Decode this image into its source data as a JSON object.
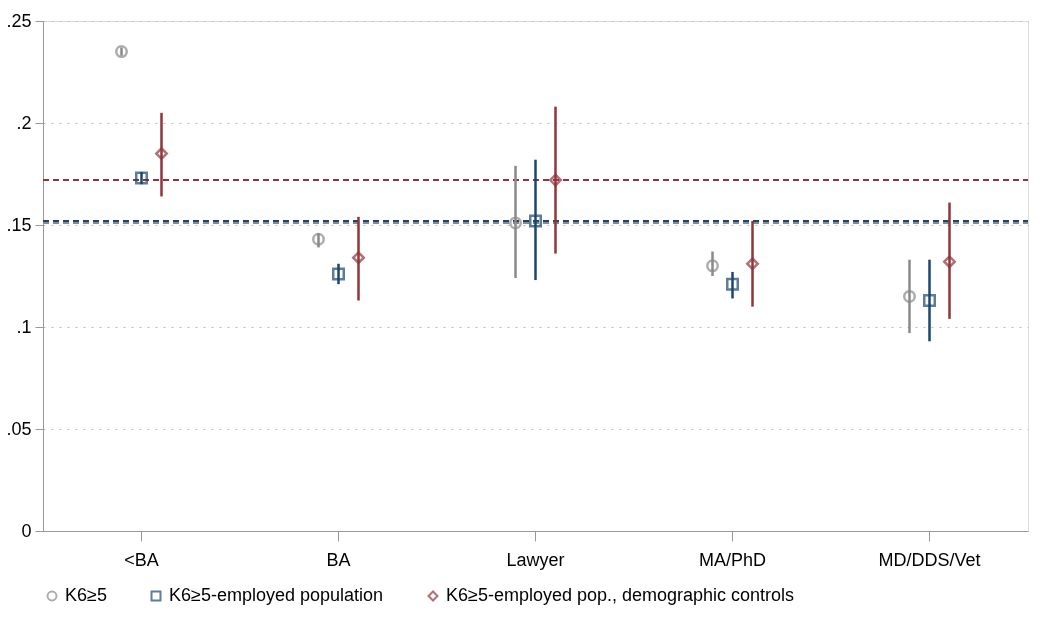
{
  "chart_data": {
    "type": "scatter",
    "categories": [
      "<BA",
      "BA",
      "Lawyer",
      "MA/PhD",
      "MD/DDS/Vet"
    ],
    "series": [
      {
        "name": "K6≥5",
        "color": "#8a8a8a",
        "marker": "circle",
        "values": [
          0.235,
          0.143,
          0.151,
          0.13,
          0.115
        ],
        "errors": [
          [
            0.233,
            0.237
          ],
          [
            0.139,
            0.146
          ],
          [
            0.124,
            0.179
          ],
          [
            0.125,
            0.137
          ],
          [
            0.097,
            0.133
          ]
        ]
      },
      {
        "name": "K6≥5-employed population",
        "color": "#1a476f",
        "marker": "square",
        "values": [
          0.173,
          0.126,
          0.152,
          0.121,
          0.113
        ],
        "errors": [
          [
            0.17,
            0.176
          ],
          [
            0.121,
            0.131
          ],
          [
            0.123,
            0.182
          ],
          [
            0.114,
            0.127
          ],
          [
            0.093,
            0.133
          ]
        ]
      },
      {
        "name": "K6≥5-employed pop., demographic controls",
        "color": "#90353b",
        "marker": "diamond",
        "values": [
          0.185,
          0.134,
          0.172,
          0.131,
          0.132
        ],
        "errors": [
          [
            0.164,
            0.205
          ],
          [
            0.113,
            0.154
          ],
          [
            0.136,
            0.208
          ],
          [
            0.11,
            0.152
          ],
          [
            0.104,
            0.161
          ]
        ]
      }
    ],
    "ylim": [
      0,
      0.25
    ],
    "yticks": [
      0,
      {
        "value": 0.05,
        "label": ".05"
      },
      {
        "value": 0.1,
        "label": ".1"
      },
      {
        "value": 0.15,
        "label": ".15"
      },
      {
        "value": 0.2,
        "label": ".2"
      },
      {
        "value": 0.25,
        "label": ".25"
      }
    ],
    "ref_lines": [
      {
        "axis": "y",
        "value": 0.172,
        "color": "#90353b",
        "line_style": "dashed"
      },
      {
        "axis": "y",
        "value": 0.151,
        "color": "#8a8a8a",
        "line_style": "dashed"
      },
      {
        "axis": "y",
        "value": 0.152,
        "color": "#1a476f",
        "line_style": "dashed"
      }
    ],
    "grid": "y",
    "legend": "bottom"
  }
}
